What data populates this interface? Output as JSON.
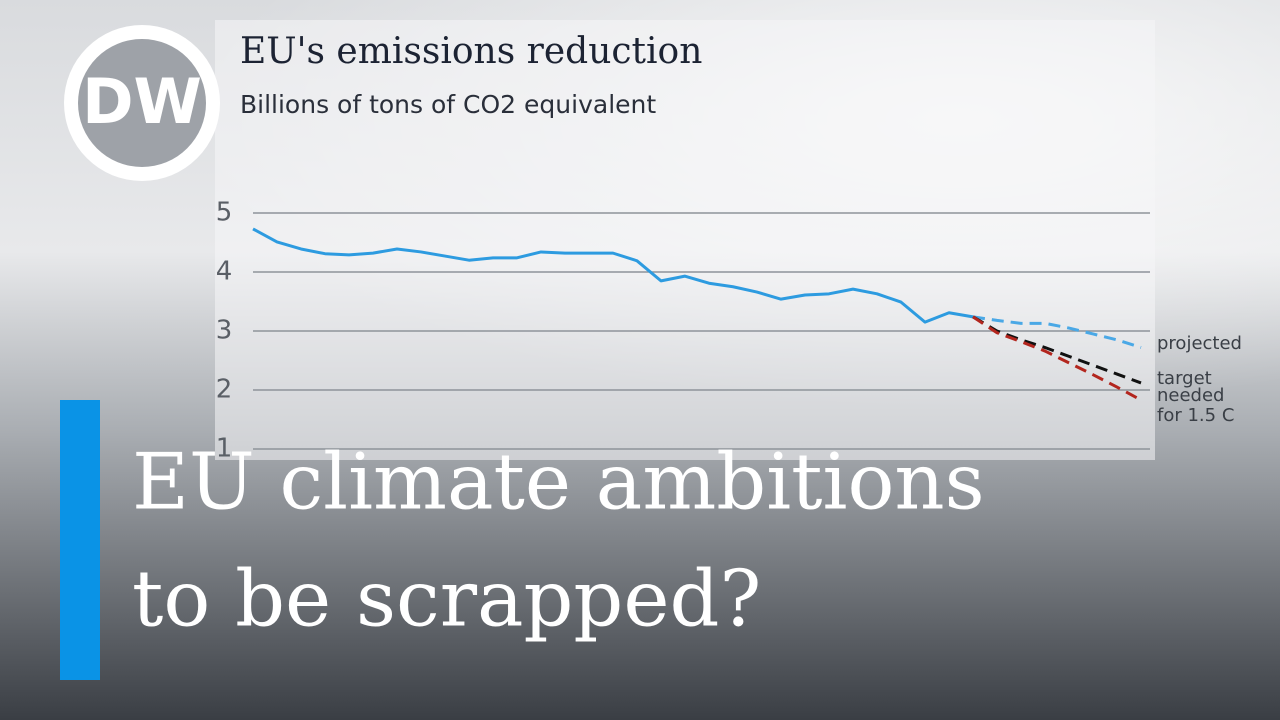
{
  "logo": "DW",
  "headline": [
    "EU climate ambitions",
    "to be scrapped?"
  ],
  "chart_data": {
    "type": "line",
    "title": "EU's emissions reduction",
    "subtitle": "Billions of tons of CO2 equivalent",
    "categories": [
      null,
      null,
      null,
      null,
      null,
      null,
      null,
      null,
      null,
      null,
      null,
      null,
      null,
      null,
      null,
      null,
      null,
      null,
      null,
      null,
      null,
      null,
      null,
      null,
      null,
      null,
      null,
      null,
      null,
      null,
      null,
      null,
      null,
      null,
      null,
      null,
      null,
      null
    ],
    "ylim": [
      1,
      5
    ],
    "yticks": [
      1,
      2,
      3,
      4,
      5
    ],
    "grid": true,
    "series": [
      {
        "color": "#2d9be0",
        "dash": false,
        "values": [
          4.73,
          4.51,
          4.39,
          4.31,
          4.29,
          4.32,
          4.39,
          4.34,
          4.27,
          4.2,
          4.24,
          4.24,
          4.34,
          4.32,
          4.32,
          4.32,
          4.19,
          3.85,
          3.93,
          3.81,
          3.75,
          3.66,
          3.54,
          3.61,
          3.63,
          3.71,
          3.63,
          3.49,
          3.15,
          3.31,
          3.24,
          null,
          null,
          null,
          null,
          null,
          null,
          null
        ]
      },
      {
        "name": "projected",
        "color": "#4aa8e6",
        "dash": true,
        "values": [
          null,
          null,
          null,
          null,
          null,
          null,
          null,
          null,
          null,
          null,
          null,
          null,
          null,
          null,
          null,
          null,
          null,
          null,
          null,
          null,
          null,
          null,
          null,
          null,
          null,
          null,
          null,
          null,
          null,
          null,
          3.24,
          3.18,
          3.13,
          3.13,
          3.05,
          2.95,
          2.85,
          2.72
        ]
      },
      {
        "name": "target",
        "color": "#111111",
        "dash": true,
        "values": [
          null,
          null,
          null,
          null,
          null,
          null,
          null,
          null,
          null,
          null,
          null,
          null,
          null,
          null,
          null,
          null,
          null,
          null,
          null,
          null,
          null,
          null,
          null,
          null,
          null,
          null,
          null,
          null,
          null,
          null,
          3.24,
          3.0,
          2.85,
          2.72,
          2.57,
          2.42,
          2.27,
          2.12
        ]
      },
      {
        "name": "needed for 1.5 C",
        "color": "#b3261e",
        "dash": true,
        "values": [
          null,
          null,
          null,
          null,
          null,
          null,
          null,
          null,
          null,
          null,
          null,
          null,
          null,
          null,
          null,
          null,
          null,
          null,
          null,
          null,
          null,
          null,
          null,
          null,
          null,
          null,
          null,
          null,
          null,
          null,
          3.24,
          2.97,
          2.82,
          2.66,
          2.46,
          2.26,
          2.05,
          1.83
        ]
      }
    ]
  }
}
